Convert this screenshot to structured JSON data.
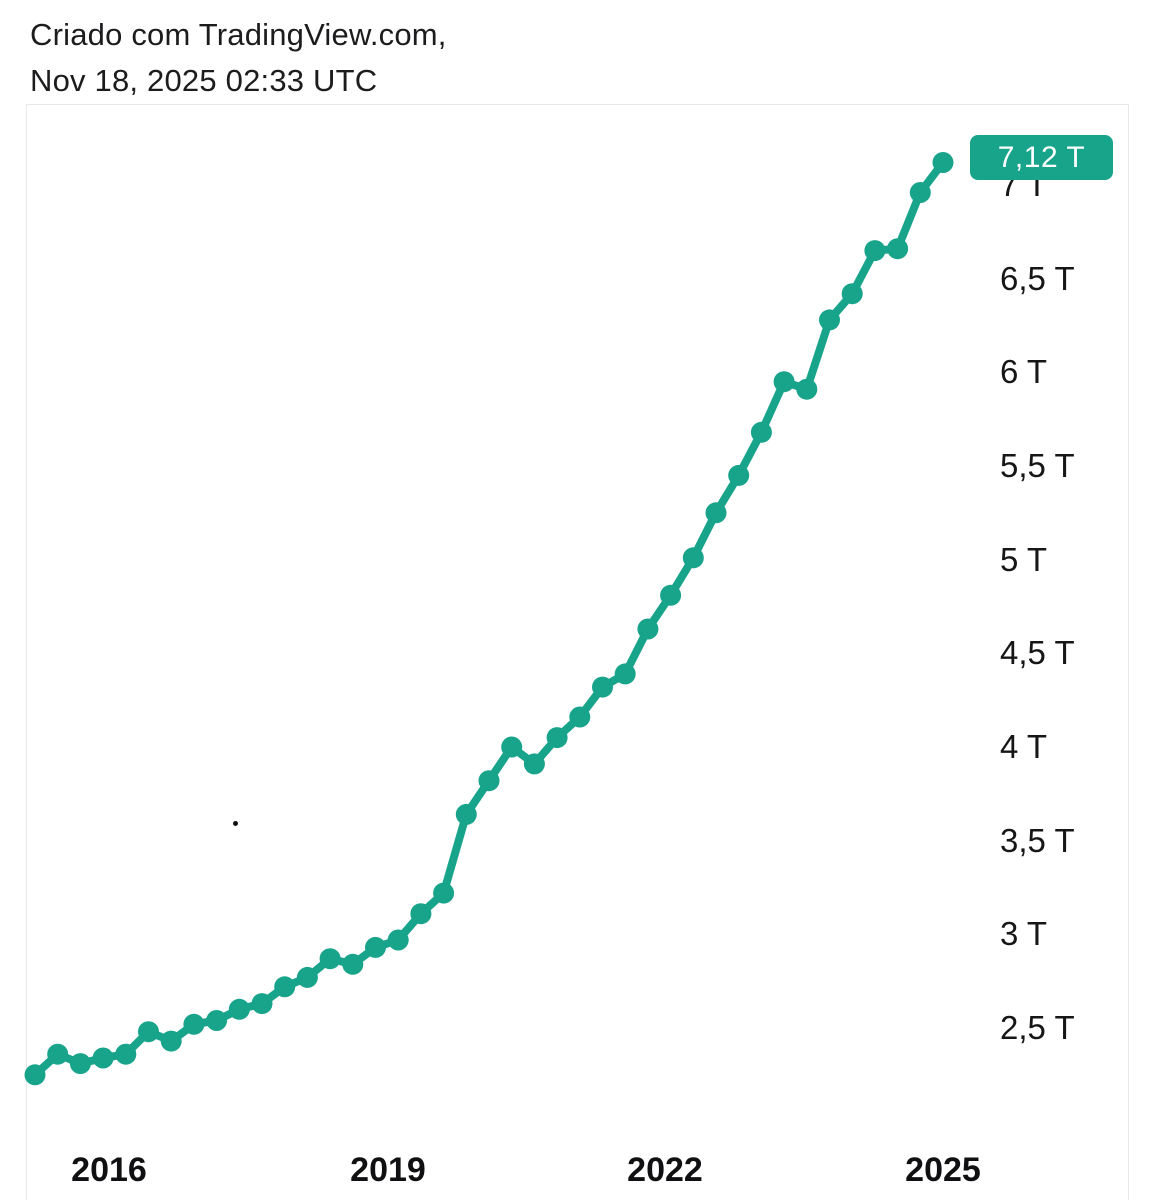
{
  "header": {
    "line1": "Criado com TradingView.com,",
    "line2": "Nov 18, 2025 02:33 UTC"
  },
  "badge": {
    "label": "7,12 T"
  },
  "colors": {
    "accent": "#18a38b",
    "badge_bg": "#18a38b",
    "badge_text": "#ffffff",
    "frame_border": "#e8e8ea",
    "header_text": "#1c1c1e",
    "axis_text": "#161616"
  },
  "chart_data": {
    "type": "line",
    "title": "",
    "xlabel": "",
    "ylabel": "",
    "unit": "T",
    "x": [
      "2015 Q1",
      "2015 Q2",
      "2015 Q3",
      "2015 Q4",
      "2016 Q1",
      "2016 Q2",
      "2016 Q3",
      "2016 Q4",
      "2017 Q1",
      "2017 Q2",
      "2017 Q3",
      "2017 Q4",
      "2018 Q1",
      "2018 Q2",
      "2018 Q3",
      "2018 Q4",
      "2019 Q1",
      "2019 Q2",
      "2019 Q3",
      "2019 Q4",
      "2020 Q1",
      "2020 Q2",
      "2020 Q3",
      "2020 Q4",
      "2021 Q1",
      "2021 Q2",
      "2021 Q3",
      "2021 Q4",
      "2022 Q1",
      "2022 Q2",
      "2022 Q3",
      "2022 Q4",
      "2023 Q1",
      "2023 Q2",
      "2023 Q3",
      "2023 Q4",
      "2024 Q1",
      "2024 Q2",
      "2024 Q3",
      "2024 Q4",
      "2025 Q1"
    ],
    "values": [
      2.25,
      2.36,
      2.31,
      2.34,
      2.36,
      2.48,
      2.43,
      2.52,
      2.54,
      2.6,
      2.63,
      2.72,
      2.77,
      2.87,
      2.84,
      2.93,
      2.97,
      3.11,
      3.22,
      3.64,
      3.82,
      4.0,
      3.91,
      4.05,
      4.16,
      4.32,
      4.39,
      4.63,
      4.81,
      5.01,
      5.25,
      5.45,
      5.68,
      5.95,
      5.91,
      6.28,
      6.42,
      6.65,
      6.66,
      6.96,
      7.12
    ],
    "last_value": 7.12,
    "last_value_label": "7,12 T",
    "y_ticks": [
      {
        "value": 7.0,
        "label": "7 T"
      },
      {
        "value": 6.5,
        "label": "6,5 T"
      },
      {
        "value": 6.0,
        "label": "6 T"
      },
      {
        "value": 5.5,
        "label": "5,5 T"
      },
      {
        "value": 5.0,
        "label": "5 T"
      },
      {
        "value": 4.5,
        "label": "4,5 T"
      },
      {
        "value": 4.0,
        "label": "4 T"
      },
      {
        "value": 3.5,
        "label": "3,5 T"
      },
      {
        "value": 3.0,
        "label": "3 T"
      },
      {
        "value": 2.5,
        "label": "2,5 T"
      }
    ],
    "x_ticks": [
      "2016",
      "2019",
      "2022",
      "2025"
    ],
    "ylim": [
      2.1,
      7.45
    ],
    "grid": false,
    "legend": false
  }
}
